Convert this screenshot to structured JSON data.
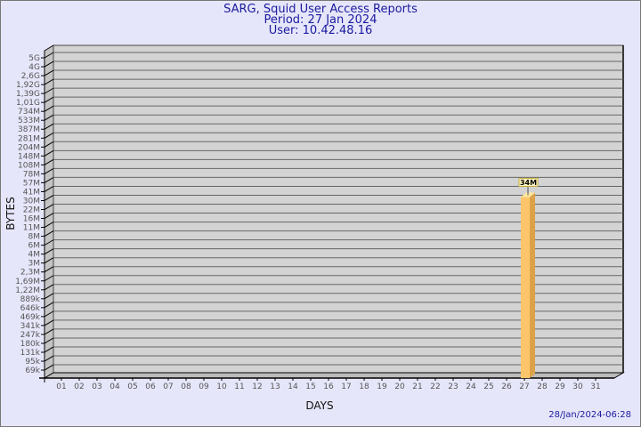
{
  "title": "SARG, Squid User Access Reports",
  "period": "Period: 27 Jan 2024",
  "user": "User: 10.42.48.16",
  "timestamp": "28/Jan/2024-06:28",
  "chart_data": {
    "type": "bar",
    "xlabel": "DAYS",
    "ylabel": "BYTES",
    "y_ticks": [
      "5G",
      "4G",
      "2,6G",
      "1,92G",
      "1,39G",
      "1,01G",
      "734M",
      "533M",
      "387M",
      "281M",
      "204M",
      "148M",
      "108M",
      "78M",
      "57M",
      "41M",
      "30M",
      "22M",
      "16M",
      "11M",
      "8M",
      "6M",
      "4M",
      "3M",
      "2,3M",
      "1,69M",
      "1,22M",
      "889k",
      "646k",
      "469k",
      "341k",
      "247k",
      "180k",
      "131k",
      "95k",
      "69k"
    ],
    "y_scale": "log",
    "categories": [
      "01",
      "02",
      "03",
      "04",
      "05",
      "06",
      "07",
      "08",
      "09",
      "10",
      "11",
      "12",
      "13",
      "14",
      "15",
      "16",
      "17",
      "18",
      "19",
      "20",
      "21",
      "22",
      "23",
      "24",
      "25",
      "26",
      "27",
      "28",
      "29",
      "30",
      "31"
    ],
    "values": [
      null,
      null,
      null,
      null,
      null,
      null,
      null,
      null,
      null,
      null,
      null,
      null,
      null,
      null,
      null,
      null,
      null,
      null,
      null,
      null,
      null,
      null,
      null,
      null,
      null,
      null,
      34000000,
      null,
      null,
      null,
      null
    ],
    "data_labels": {
      "27": "34M"
    },
    "grid": true,
    "colors": {
      "bar": "#ffc56a",
      "bar_side": "#dba24a",
      "bar_top": "#ffe8a0",
      "wall": "#d3d3d3",
      "background": "#e6e6fa",
      "title": "#1a1aa0"
    }
  }
}
